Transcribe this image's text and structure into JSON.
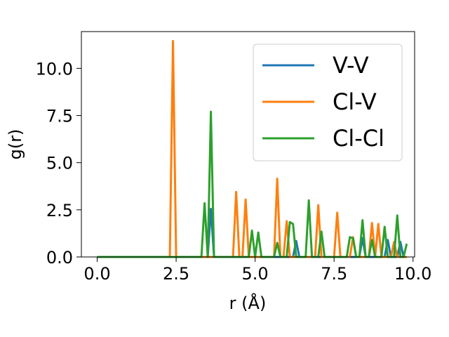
{
  "chart_data": {
    "type": "line",
    "title": "",
    "xlabel": "r (Å)",
    "ylabel": "g(r)",
    "xlim": [
      -0.5,
      10.05
    ],
    "ylim": [
      0,
      11.95
    ],
    "x_ticks": [
      "0.0",
      "2.5",
      "5.0",
      "7.5",
      "10.0"
    ],
    "x_tick_values": [
      0,
      2.5,
      5,
      7.5,
      10
    ],
    "y_ticks": [
      "0.0",
      "2.5",
      "5.0",
      "7.5",
      "10.0"
    ],
    "y_tick_values": [
      0,
      2.5,
      5,
      7.5,
      10
    ],
    "grid": false,
    "legend_position": "top-right",
    "series": [
      {
        "name": "V-V",
        "color": "#1f77b4",
        "x": [
          0,
          3.3,
          3.4,
          3.5,
          3.6,
          3.7,
          3.8,
          6.1,
          6.2,
          6.3,
          6.4,
          6.5,
          8.2,
          8.3,
          8.4,
          8.5,
          8.6,
          9.1,
          9.2,
          9.3,
          9.5,
          9.6,
          9.7,
          9.8
        ],
        "y": [
          0,
          0,
          0,
          0,
          2.55,
          0,
          0,
          0,
          0,
          0.85,
          0,
          0,
          0,
          0,
          1.0,
          0,
          0,
          0,
          0.9,
          0,
          0,
          0.8,
          0,
          0
        ]
      },
      {
        "name": "Cl-V",
        "color": "#ff7f0e",
        "x": [
          0,
          2.3,
          2.4,
          2.5,
          4.3,
          4.4,
          4.5,
          4.6,
          4.7,
          4.8,
          5.6,
          5.7,
          5.8,
          5.9,
          6.0,
          6.1,
          6.9,
          7.0,
          7.1,
          7.5,
          7.6,
          7.7,
          8.0,
          8.1,
          8.2,
          8.6,
          8.7,
          8.8,
          8.9,
          9.0,
          9.3,
          9.4,
          9.5,
          9.8
        ],
        "y": [
          0,
          0,
          11.45,
          0,
          0,
          3.45,
          0,
          0,
          3.05,
          0,
          0,
          4.15,
          0,
          0,
          1.9,
          0,
          0,
          2.75,
          0,
          0,
          2.35,
          0,
          0,
          1.05,
          0,
          0,
          1.8,
          0,
          1.75,
          0,
          0,
          0.8,
          0,
          0
        ]
      },
      {
        "name": "Cl-Cl",
        "color": "#2ca02c",
        "x": [
          0,
          3.3,
          3.4,
          3.5,
          3.6,
          3.7,
          4.8,
          4.9,
          5.0,
          5.1,
          5.2,
          5.6,
          5.7,
          5.8,
          6.0,
          6.1,
          6.2,
          6.3,
          6.6,
          6.7,
          6.8,
          7.0,
          7.1,
          7.2,
          7.4,
          7.5,
          7.9,
          8.0,
          8.1,
          8.2,
          8.3,
          8.4,
          8.5,
          8.6,
          8.7,
          8.8,
          8.9,
          9.0,
          9.1,
          9.2,
          9.3,
          9.4,
          9.5,
          9.6,
          9.7,
          9.8
        ],
        "y": [
          0,
          0,
          2.85,
          0,
          7.7,
          0,
          0,
          1.4,
          0,
          1.3,
          0,
          0,
          0.75,
          0,
          0,
          1.85,
          1.75,
          0,
          0,
          3.0,
          0,
          0,
          1.35,
          0,
          0,
          0,
          0,
          1.05,
          1.0,
          0,
          0,
          1.95,
          0,
          0,
          0.9,
          0,
          0,
          0,
          1.6,
          0,
          0,
          0,
          2.2,
          0,
          0,
          0.7
        ]
      }
    ]
  }
}
